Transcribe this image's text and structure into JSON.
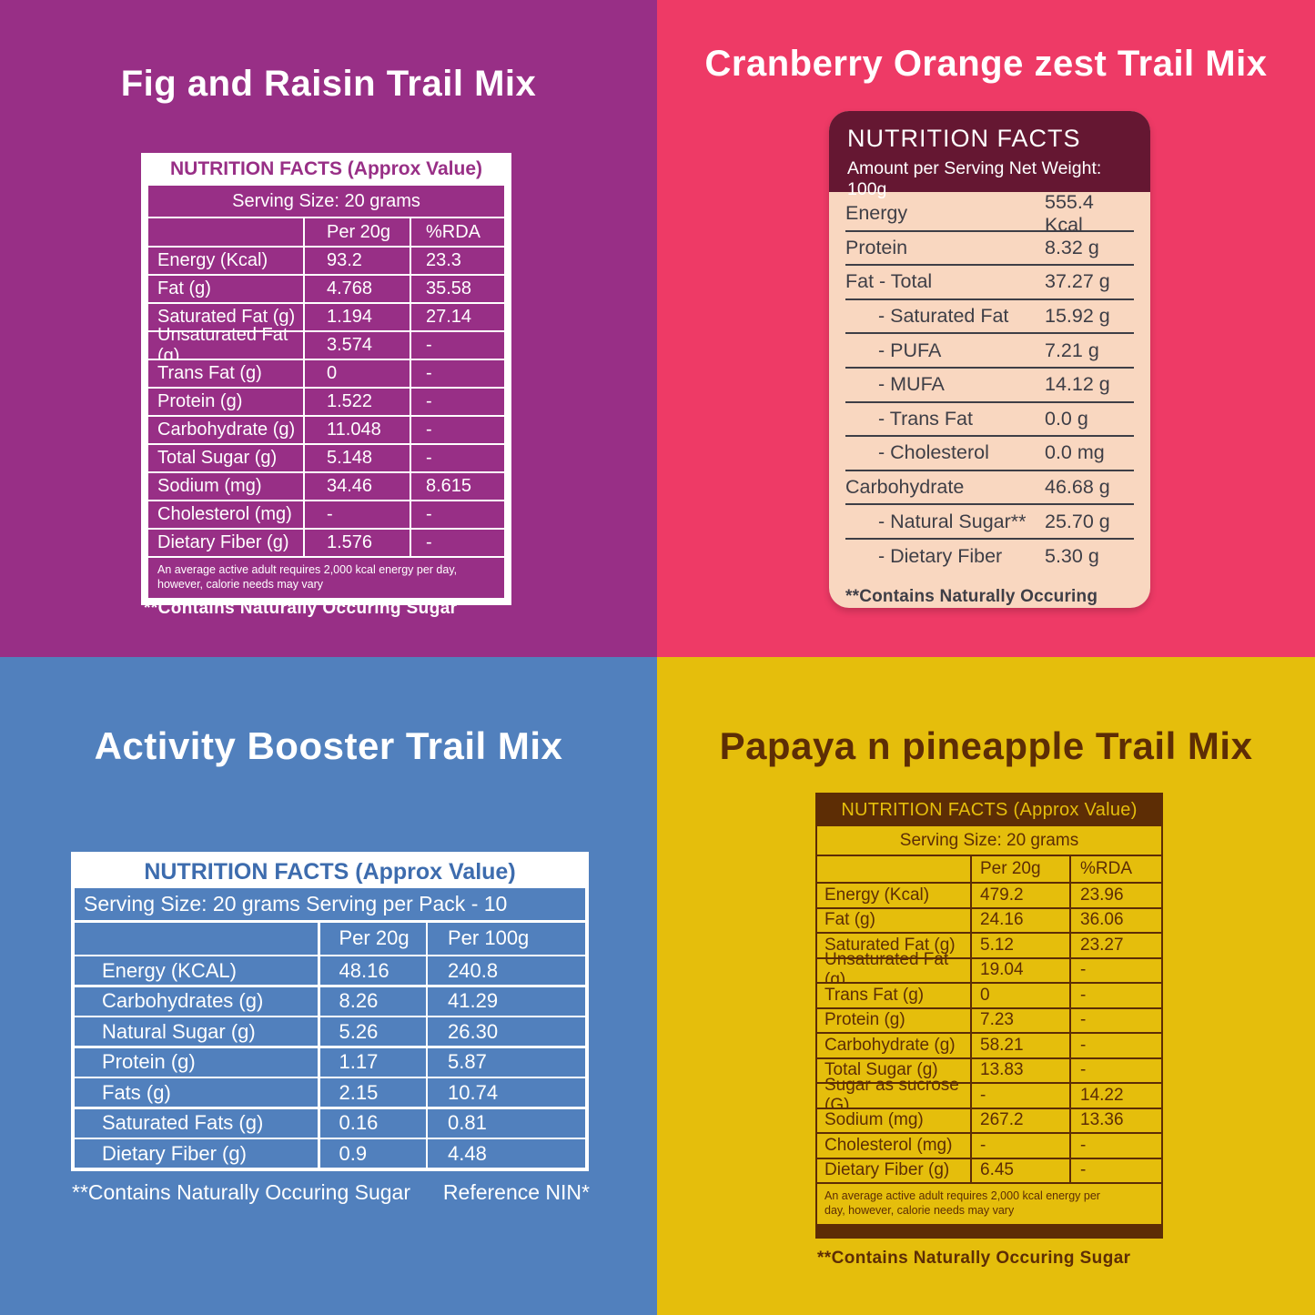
{
  "colors": {
    "purple": "#982F86",
    "pink": "#EE3A66",
    "blue": "#5180BD",
    "yellow": "#E5BE0C",
    "maroon": "#651732",
    "peach": "#F9D7C0",
    "charcoal": "#3E3E46",
    "brown": "#5D2D05",
    "bluetext": "#3D6CAE"
  },
  "fig": {
    "title": "Fig and Raisin Trail Mix",
    "table_header": "NUTRITION FACTS (Approx Value)",
    "serving": "Serving Size: 20 grams",
    "col1": "Per 20g",
    "col2": "%RDA",
    "rows": [
      [
        "Energy (Kcal)",
        "93.2",
        "23.3"
      ],
      [
        "Fat (g)",
        "4.768",
        "35.58"
      ],
      [
        "Saturated Fat (g)",
        "1.194",
        "27.14"
      ],
      [
        "Unsaturated Fat (g)",
        "3.574",
        "-"
      ],
      [
        "Trans Fat (g)",
        "0",
        "-"
      ],
      [
        "Protein (g)",
        "1.522",
        "-"
      ],
      [
        "Carbohydrate (g)",
        "11.048",
        "-"
      ],
      [
        "Total Sugar (g)",
        "5.148",
        "-"
      ],
      [
        "Sodium (mg)",
        "34.46",
        "8.615"
      ],
      [
        "Cholesterol (mg)",
        "-",
        "-"
      ],
      [
        "Dietary Fiber (g)",
        "1.576",
        "-"
      ]
    ],
    "note": "An average active adult requires 2,000 kcal energy per day, however, calorie needs may vary",
    "footnote": "**Contains Naturally Occuring Sugar"
  },
  "cranberry": {
    "title": "Cranberry Orange zest Trail Mix",
    "header_line1": "NUTRITION FACTS",
    "header_line2": "Amount per Serving Net Weight: 100g",
    "rows": [
      {
        "label": "Energy",
        "value": "555.4 Kcal",
        "indent": false
      },
      {
        "label": "Protein",
        "value": "8.32 g",
        "indent": false
      },
      {
        "label": "Fat - Total",
        "value": "37.27 g",
        "indent": false
      },
      {
        "label": "- Saturated Fat",
        "value": "15.92 g",
        "indent": true
      },
      {
        "label": "- PUFA",
        "value": "7.21 g",
        "indent": true
      },
      {
        "label": "- MUFA",
        "value": "14.12 g",
        "indent": true
      },
      {
        "label": "- Trans Fat",
        "value": "0.0 g",
        "indent": true
      },
      {
        "label": "- Cholesterol",
        "value": "0.0 mg",
        "indent": true
      },
      {
        "label": "Carbohydrate",
        "value": "46.68 g",
        "indent": false
      },
      {
        "label": "- Natural Sugar**",
        "value": "25.70 g",
        "indent": true
      },
      {
        "label": "- Dietary Fiber",
        "value": "5.30 g",
        "indent": true
      }
    ],
    "footnote": "**Contains Naturally Occuring Sugar"
  },
  "activity": {
    "title": "Activity Booster Trail Mix",
    "table_header": "NUTRITION FACTS (Approx Value)",
    "serving": "Serving Size: 20 grams Serving per Pack - 10",
    "col1": "Per 20g",
    "col2": "Per 100g",
    "rows": [
      [
        "Energy (KCAL)",
        "48.16",
        "240.8"
      ],
      [
        "Carbohydrates (g)",
        "8.26",
        "41.29"
      ],
      [
        "Natural Sugar (g)",
        "5.26",
        "26.30"
      ],
      [
        "Protein (g)",
        "1.17",
        "5.87"
      ],
      [
        "Fats (g)",
        "2.15",
        "10.74"
      ],
      [
        "Saturated Fats (g)",
        "0.16",
        "0.81"
      ],
      [
        "Dietary Fiber (g)",
        "0.9",
        "4.48"
      ]
    ],
    "footnote": "**Contains Naturally Occuring Sugar",
    "reference": "Reference NIN*"
  },
  "papaya": {
    "title": "Papaya n pineapple Trail Mix",
    "table_header": "NUTRITION FACTS (Approx Value)",
    "serving": "Serving Size: 20 grams",
    "col1": "Per 20g",
    "col2": "%RDA",
    "rows": [
      [
        "Energy (Kcal)",
        "479.2",
        "23.96"
      ],
      [
        "Fat (g)",
        "24.16",
        "36.06"
      ],
      [
        "Saturated Fat (g)",
        "5.12",
        "23.27"
      ],
      [
        "Unsaturated Fat (g)",
        "19.04",
        "-"
      ],
      [
        "Trans Fat (g)",
        "0",
        "-"
      ],
      [
        "Protein (g)",
        "7.23",
        "-"
      ],
      [
        "Carbohydrate (g)",
        "58.21",
        "-"
      ],
      [
        "Total Sugar (g)",
        "13.83",
        "-"
      ],
      [
        "Sugar as sucrose (G)",
        "-",
        "14.22"
      ],
      [
        "Sodium (mg)",
        "267.2",
        "13.36"
      ],
      [
        "Cholesterol (mg)",
        "-",
        "-"
      ],
      [
        "Dietary Fiber (g)",
        "6.45",
        "-"
      ]
    ],
    "note": "An average active adult requires 2,000 kcal energy per day, however, calorie needs may vary",
    "footnote": "**Contains Naturally Occuring Sugar"
  }
}
